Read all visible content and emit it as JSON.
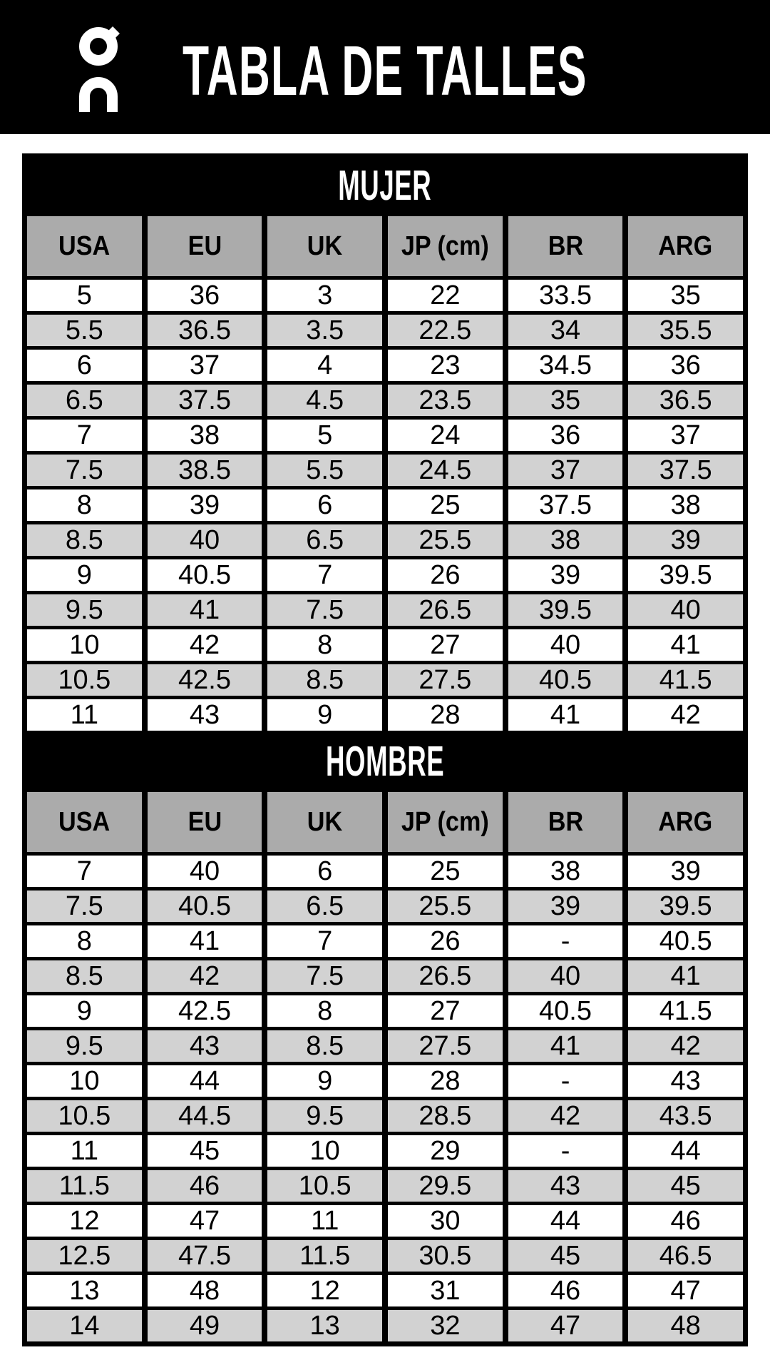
{
  "colors": {
    "banner_bg": "#000000",
    "table_border": "#000000",
    "header_cell_bg": "#ababab",
    "row_bg": "#ffffff",
    "row_alt_bg": "#d2d2d2",
    "band_bg": "#000000",
    "band_text": "#ffffff",
    "cell_text": "#000000"
  },
  "header": {
    "logo": "on-running-logo",
    "title": "TABLA DE TALLES"
  },
  "tables": [
    {
      "section": "MUJER",
      "columns": [
        "USA",
        "EU",
        "UK",
        "JP (cm)",
        "BR",
        "ARG"
      ],
      "rows": [
        [
          "5",
          "36",
          "3",
          "22",
          "33.5",
          "35"
        ],
        [
          "5.5",
          "36.5",
          "3.5",
          "22.5",
          "34",
          "35.5"
        ],
        [
          "6",
          "37",
          "4",
          "23",
          "34.5",
          "36"
        ],
        [
          "6.5",
          "37.5",
          "4.5",
          "23.5",
          "35",
          "36.5"
        ],
        [
          "7",
          "38",
          "5",
          "24",
          "36",
          "37"
        ],
        [
          "7.5",
          "38.5",
          "5.5",
          "24.5",
          "37",
          "37.5"
        ],
        [
          "8",
          "39",
          "6",
          "25",
          "37.5",
          "38"
        ],
        [
          "8.5",
          "40",
          "6.5",
          "25.5",
          "38",
          "39"
        ],
        [
          "9",
          "40.5",
          "7",
          "26",
          "39",
          "39.5"
        ],
        [
          "9.5",
          "41",
          "7.5",
          "26.5",
          "39.5",
          "40"
        ],
        [
          "10",
          "42",
          "8",
          "27",
          "40",
          "41"
        ],
        [
          "10.5",
          "42.5",
          "8.5",
          "27.5",
          "40.5",
          "41.5"
        ],
        [
          "11",
          "43",
          "9",
          "28",
          "41",
          "42"
        ]
      ]
    },
    {
      "section": "HOMBRE",
      "columns": [
        "USA",
        "EU",
        "UK",
        "JP (cm)",
        "BR",
        "ARG"
      ],
      "rows": [
        [
          "7",
          "40",
          "6",
          "25",
          "38",
          "39"
        ],
        [
          "7.5",
          "40.5",
          "6.5",
          "25.5",
          "39",
          "39.5"
        ],
        [
          "8",
          "41",
          "7",
          "26",
          "-",
          "40.5"
        ],
        [
          "8.5",
          "42",
          "7.5",
          "26.5",
          "40",
          "41"
        ],
        [
          "9",
          "42.5",
          "8",
          "27",
          "40.5",
          "41.5"
        ],
        [
          "9.5",
          "43",
          "8.5",
          "27.5",
          "41",
          "42"
        ],
        [
          "10",
          "44",
          "9",
          "28",
          "-",
          "43"
        ],
        [
          "10.5",
          "44.5",
          "9.5",
          "28.5",
          "42",
          "43.5"
        ],
        [
          "11",
          "45",
          "10",
          "29",
          "-",
          "44"
        ],
        [
          "11.5",
          "46",
          "10.5",
          "29.5",
          "43",
          "45"
        ],
        [
          "12",
          "47",
          "11",
          "30",
          "44",
          "46"
        ],
        [
          "12.5",
          "47.5",
          "11.5",
          "30.5",
          "45",
          "46.5"
        ],
        [
          "13",
          "48",
          "12",
          "31",
          "46",
          "47"
        ],
        [
          "14",
          "49",
          "13",
          "32",
          "47",
          "48"
        ]
      ]
    }
  ]
}
